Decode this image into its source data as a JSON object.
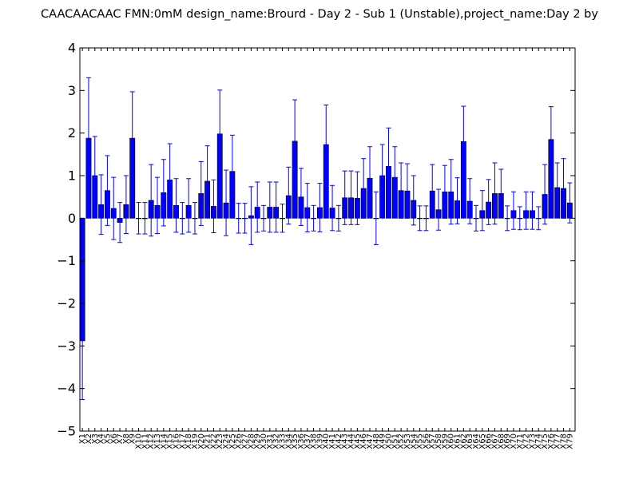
{
  "chart_data": {
    "type": "bar",
    "title": "CAACAACAAC  FMN:0mM  design_name:Brourd - Day 2 - Sub 1 (Unstable),project_name:Day 2 by",
    "xlabel": "",
    "ylabel": "",
    "ylim": [
      -5,
      4
    ],
    "yticks": [
      -5,
      -4,
      -3,
      -2,
      -1,
      0,
      1,
      2,
      3,
      4
    ],
    "ytick_labels": [
      "−5",
      "−4",
      "−3",
      "−2",
      "−1",
      "0",
      "1",
      "2",
      "3",
      "4"
    ],
    "grid": false,
    "bar_color": "#0000ff",
    "error_color": "#0000ff",
    "categories": [
      "X1",
      "X2",
      "X3",
      "X4",
      "X5",
      "X6",
      "X7",
      "X8",
      "X9",
      "X10",
      "X11",
      "X12",
      "X13",
      "X14",
      "X15",
      "X16",
      "X17",
      "X18",
      "X19",
      "X20",
      "X21",
      "X22",
      "X23",
      "X24",
      "X25",
      "X26",
      "X27",
      "X28",
      "X29",
      "X30",
      "X31",
      "X32",
      "X33",
      "X34",
      "X35",
      "X36",
      "X37",
      "X38",
      "X39",
      "X40",
      "X41",
      "X42",
      "X43",
      "X44",
      "X45",
      "X46",
      "X47",
      "X48",
      "X49",
      "X50",
      "X51",
      "X52",
      "X53",
      "X54",
      "X55",
      "X56",
      "X57",
      "X58",
      "X59",
      "X60",
      "X61",
      "X62",
      "X63",
      "X64",
      "X65",
      "X66",
      "X67",
      "X68",
      "X69",
      "X70",
      "X71",
      "X72",
      "X73",
      "X74",
      "X75",
      "X76",
      "X77",
      "X78",
      "X79"
    ],
    "values": [
      -2.88,
      1.88,
      1.0,
      0.32,
      0.65,
      0.23,
      -0.1,
      0.32,
      1.88,
      0.0,
      0.0,
      0.42,
      0.3,
      0.6,
      0.9,
      0.3,
      0.0,
      0.3,
      0.0,
      0.58,
      0.87,
      0.28,
      1.98,
      0.36,
      1.1,
      0.0,
      0.0,
      0.06,
      0.26,
      0.0,
      0.26,
      0.26,
      0.0,
      0.53,
      1.81,
      0.5,
      0.25,
      0.0,
      0.25,
      1.73,
      0.24,
      0.0,
      0.48,
      0.48,
      0.47,
      0.7,
      0.94,
      0.0,
      1.0,
      1.22,
      0.96,
      0.65,
      0.64,
      0.42,
      0.0,
      0.0,
      0.64,
      0.2,
      0.62,
      0.62,
      0.41,
      1.8,
      0.4,
      0.0,
      0.18,
      0.38,
      0.58,
      0.58,
      0.0,
      0.18,
      0.0,
      0.18,
      0.18,
      0.0,
      0.56,
      1.85,
      0.72,
      0.7,
      0.36
    ],
    "errors": [
      1.38,
      1.42,
      0.92,
      0.7,
      0.82,
      0.73,
      0.47,
      0.68,
      1.09,
      0.37,
      0.37,
      0.84,
      0.66,
      0.78,
      0.85,
      0.63,
      0.37,
      0.63,
      0.37,
      0.75,
      0.83,
      0.62,
      1.03,
      0.77,
      0.85,
      0.35,
      0.35,
      0.68,
      0.59,
      0.3,
      0.59,
      0.59,
      0.33,
      0.67,
      0.97,
      0.67,
      0.57,
      0.3,
      0.57,
      0.93,
      0.53,
      0.3,
      0.63,
      0.63,
      0.62,
      0.7,
      0.74,
      0.62,
      0.73,
      0.9,
      0.72,
      0.65,
      0.64,
      0.58,
      0.29,
      0.29,
      0.62,
      0.48,
      0.62,
      0.76,
      0.54,
      0.83,
      0.53,
      0.3,
      0.47,
      0.53,
      0.72,
      0.57,
      0.29,
      0.44,
      0.27,
      0.44,
      0.44,
      0.27,
      0.7,
      0.77,
      0.58,
      0.7,
      0.47
    ]
  }
}
